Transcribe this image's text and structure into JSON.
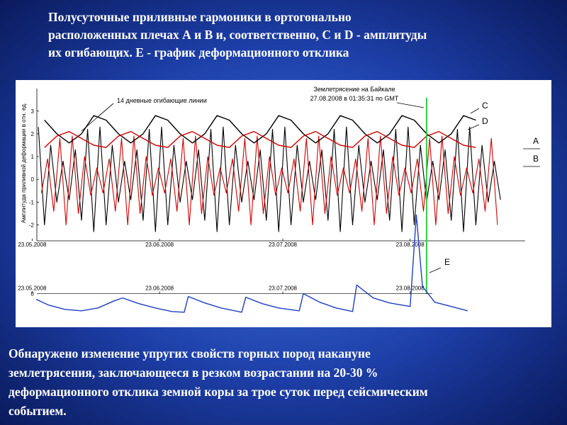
{
  "title": [
    "Полусуточные приливные гармоники в ортогонально",
    "расположенных плечах А и В и, соответственно, С и D - амплитуды",
    "их огибающих. Е - график деформационного отклика"
  ],
  "footer": [
    "Обнаружено изменение упругих свойств горных пород накануне",
    "землетрясения, заключающееся в резком возрастании на 20-30 %",
    "деформационного отклика земной коры за трое суток перед сейсмическим",
    "событием."
  ],
  "chart_data": [
    {
      "type": "line",
      "y_label": "Амплитуда приливной деформации в отн. ед.",
      "annotations": [
        "14 дневные огибающие линии",
        "Землетрясение на Байкале",
        "27.08.2008 в 01:35:31 по GMT"
      ],
      "vline": {
        "x": 96,
        "color": "#2ecc40"
      },
      "xlim": [
        -3,
        120
      ],
      "xticks": [
        {
          "value": 0,
          "label": "23.05.2008"
        },
        {
          "value": 31,
          "label": "23.06.2008"
        },
        {
          "value": 61,
          "label": "23.07.2008"
        },
        {
          "value": 92,
          "label": "23.08.2008"
        }
      ],
      "ylim": [
        -2.7,
        4.3
      ],
      "yticks": [
        -2,
        -1,
        0,
        1,
        2,
        3
      ],
      "series": [
        {
          "name": "A",
          "color": "#000000",
          "x": [
            1.5,
            3,
            4.5,
            6,
            7.5,
            9,
            10.5,
            12,
            13.5,
            15,
            16.5,
            18,
            19.5,
            21,
            22.5,
            24,
            25.5,
            27,
            28.5,
            30,
            31.5,
            33,
            34.5,
            36,
            37.5,
            39,
            40.5,
            42,
            43.5,
            45,
            46.5,
            48,
            49.5,
            51,
            52.5,
            54,
            55.5,
            57,
            58.5,
            60,
            61.5,
            63,
            64.5,
            66,
            67.5,
            69,
            70.5,
            72,
            73.5,
            75,
            76.5,
            78,
            79.5,
            81,
            82.5,
            84,
            85.5,
            87,
            88.5,
            90,
            91.5,
            93,
            94.5,
            96,
            97.5,
            99,
            100.5,
            102,
            103.5,
            105,
            106.5,
            108,
            109.5,
            111,
            112.5,
            114
          ],
          "values": [
            2.3,
            -2.0,
            1.5,
            -1.0,
            0.8,
            -0.9,
            1.3,
            -1.8,
            2.2,
            -2.3,
            2.3,
            -2.0,
            1.5,
            -1.0,
            0.8,
            -0.9,
            1.3,
            -1.8,
            2.2,
            -2.3,
            2.3,
            -2.0,
            1.5,
            -1.0,
            0.8,
            -0.9,
            1.3,
            -1.8,
            2.2,
            -2.3,
            2.3,
            -2.0,
            1.5,
            -1.0,
            0.8,
            -0.9,
            1.3,
            -1.8,
            2.2,
            -2.3,
            2.3,
            -2.0,
            1.5,
            -1.0,
            0.8,
            -0.9,
            1.3,
            -1.8,
            2.2,
            -2.3,
            2.3,
            -2.0,
            1.5,
            -1.0,
            0.8,
            -0.9,
            1.3,
            -1.8,
            2.2,
            -2.3,
            2.3,
            -2.0,
            1.5,
            -1.0,
            0.8,
            -0.9,
            1.3,
            -1.8,
            2.2,
            -2.3,
            2.3,
            -2.0,
            1.5,
            -1.0,
            0.8,
            -0.9
          ]
        },
        {
          "name": "B",
          "color": "#d40000",
          "x": [
            2.25,
            3.75,
            5.25,
            6.75,
            8.25,
            9.75,
            11.25,
            12.75,
            14.25,
            15.75,
            17.25,
            18.75,
            20.25,
            21.75,
            23.25,
            24.75,
            26.25,
            27.75,
            29.25,
            30.75,
            32.25,
            33.75,
            35.25,
            36.75,
            38.25,
            39.75,
            41.25,
            42.75,
            44.25,
            45.75,
            47.25,
            48.75,
            50.25,
            51.75,
            53.25,
            54.75,
            56.25,
            57.75,
            59.25,
            60.75,
            62.25,
            63.75,
            65.25,
            66.75,
            68.25,
            69.75,
            71.25,
            72.75,
            74.25,
            75.75,
            77.25,
            78.75,
            80.25,
            81.75,
            83.25,
            84.75,
            86.25,
            87.75,
            89.25,
            90.75,
            92.25,
            93.75,
            95.25,
            96.75,
            98.25,
            99.75,
            101.25,
            102.75,
            104.25,
            105.75,
            107.25,
            108.75,
            110.25,
            111.75,
            113.25
          ],
          "values": [
            -0.6,
            0.9,
            -1.4,
            1.8,
            -2.0,
            1.9,
            -1.5,
            1.0,
            -0.7,
            0.5,
            -0.6,
            0.9,
            -1.4,
            1.8,
            -2.0,
            1.9,
            -1.5,
            1.0,
            -0.7,
            0.5,
            -0.6,
            0.9,
            -1.4,
            1.8,
            -2.0,
            1.9,
            -1.5,
            1.0,
            -0.7,
            0.5,
            -0.6,
            0.9,
            -1.4,
            1.8,
            -2.0,
            1.9,
            -1.5,
            1.0,
            -0.7,
            0.5,
            -0.6,
            0.9,
            -1.4,
            1.8,
            -2.0,
            1.9,
            -1.5,
            1.0,
            -0.7,
            0.5,
            -0.6,
            0.9,
            -1.4,
            1.8,
            -2.0,
            1.9,
            -1.5,
            1.0,
            -0.7,
            0.5,
            -0.6,
            0.9,
            -1.4,
            1.8,
            -2.0,
            1.9,
            -1.5,
            1.0,
            -0.7,
            0.5,
            -0.6,
            0.9,
            -1.4,
            1.8,
            -2.0
          ]
        },
        {
          "name": "C",
          "color": "#000000",
          "x": [
            3,
            6,
            9,
            12,
            15,
            18,
            21,
            24,
            27,
            30,
            33,
            36,
            39,
            42,
            45,
            48,
            51,
            54,
            57,
            60,
            63,
            66,
            69,
            72,
            75,
            78,
            81,
            84,
            87,
            90,
            93,
            96,
            99,
            102,
            105,
            108
          ],
          "values": [
            2.6,
            2.0,
            1.6,
            2.0,
            2.8,
            2.6,
            2.0,
            1.6,
            2.0,
            2.8,
            2.6,
            2.0,
            1.6,
            2.0,
            2.8,
            2.6,
            2.0,
            1.6,
            2.0,
            2.8,
            2.6,
            2.0,
            1.6,
            2.0,
            2.8,
            2.6,
            2.0,
            1.6,
            2.0,
            2.8,
            2.6,
            2.0,
            1.6,
            2.0,
            2.8,
            2.6
          ]
        },
        {
          "name": "D",
          "color": "#d40000",
          "x": [
            3,
            6,
            9,
            12,
            15,
            18,
            21,
            24,
            27,
            30,
            33,
            36,
            39,
            42,
            45,
            48,
            51,
            54,
            57,
            60,
            63,
            66,
            69,
            72,
            75,
            78,
            81,
            84,
            87,
            90,
            93,
            96,
            99,
            102,
            105,
            108
          ],
          "values": [
            1.4,
            1.9,
            2.1,
            1.8,
            1.5,
            1.4,
            1.9,
            2.1,
            1.8,
            1.5,
            1.4,
            1.9,
            2.1,
            1.8,
            1.5,
            1.4,
            1.9,
            2.1,
            1.8,
            1.5,
            1.4,
            1.9,
            2.1,
            1.8,
            1.5,
            1.4,
            1.9,
            2.1,
            1.8,
            1.5,
            1.4,
            1.9,
            2.1,
            1.8,
            1.5,
            1.4
          ]
        }
      ]
    },
    {
      "type": "line",
      "xlim": [
        -3,
        120
      ],
      "xticks": [
        {
          "value": 0,
          "label": "23.05.2008"
        },
        {
          "value": 31,
          "label": "23.06.2008"
        },
        {
          "value": 61,
          "label": "23.07.2008"
        },
        {
          "value": 92,
          "label": "23.08.2008"
        }
      ],
      "ylim": [
        -4,
        13.3
      ],
      "yticks": [
        0
      ],
      "series": [
        {
          "name": "E",
          "color": "#1f3fbf",
          "x": [
            1,
            4,
            8,
            12,
            16,
            20,
            22,
            26,
            30,
            34,
            37,
            38,
            42,
            46,
            51,
            52,
            56,
            60,
            65,
            66,
            70,
            74,
            78,
            79,
            83,
            87,
            92,
            93.5,
            95,
            98,
            102,
            106
          ],
          "values": [
            -0.8,
            -1.6,
            -2.2,
            -2.4,
            -2.0,
            -1.0,
            -0.6,
            -1.4,
            -2.0,
            -2.5,
            -2.6,
            -0.4,
            -1.3,
            -2.0,
            -2.6,
            -0.5,
            -1.4,
            -2.0,
            -2.4,
            0.0,
            -1.2,
            -2.0,
            -2.5,
            1.2,
            -0.6,
            -1.3,
            -1.8,
            11.0,
            1.0,
            -1.2,
            -1.8,
            -2.4
          ]
        }
      ]
    }
  ]
}
